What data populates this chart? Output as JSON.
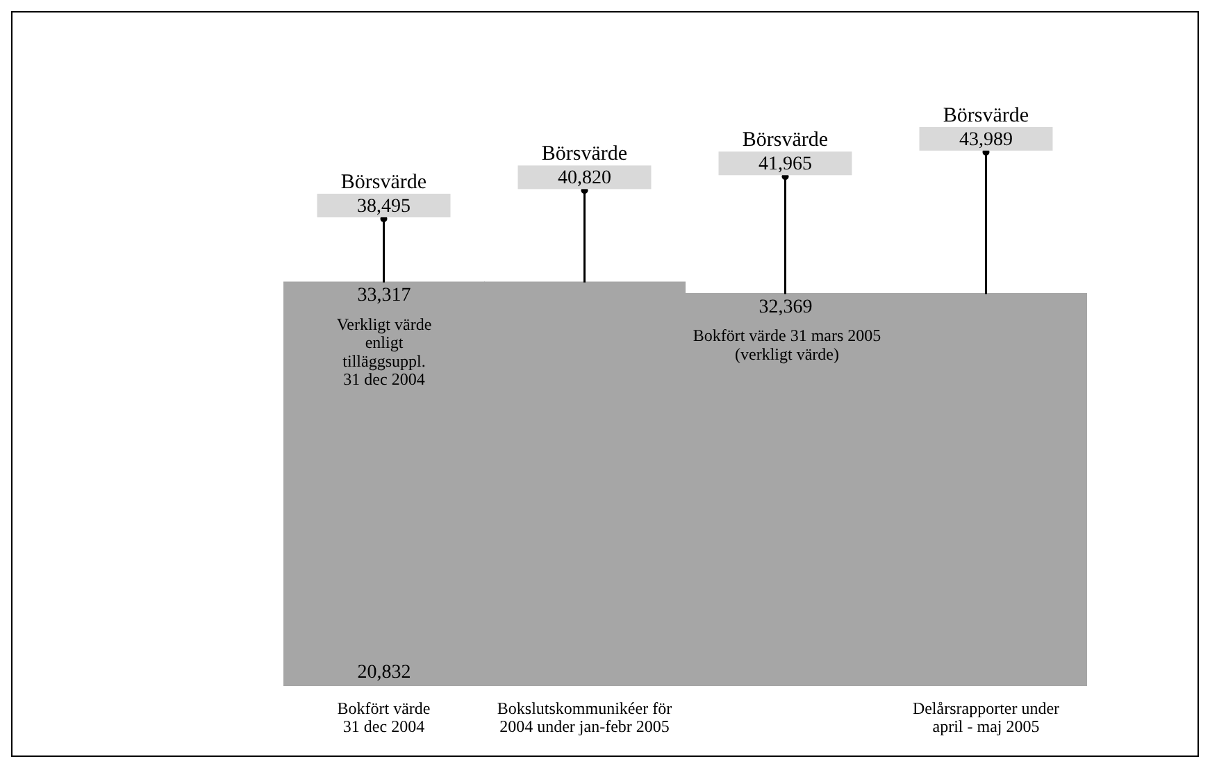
{
  "chart_data": {
    "type": "bar",
    "categories": [
      "Bokfört värde\n31 dec 2004",
      "Bokslutskommunikéer för\n2004 under jan-febr 2005",
      null,
      "Delårsrapporter under\napril - maj 2005"
    ],
    "series": [
      {
        "color": "#a6a6a6",
        "values": [
          33317,
          33317,
          32369,
          32369
        ],
        "value_labels": [
          "33,317",
          null,
          "32,369",
          null
        ]
      },
      {
        "type": "scatter",
        "name": "Börsvärde",
        "color": "#000000",
        "marker": "circle",
        "values": [
          38495,
          40820,
          41965,
          43989
        ],
        "value_labels": [
          "38,495",
          "40,820",
          "41,965",
          "43,989"
        ]
      }
    ],
    "tick_labels": "x",
    "annotations": [
      "20,832",
      {
        "text": "Verkligt värde\nenligt\ntilläggsuppl.\n31 dec 2004",
        "y": 33317
      },
      {
        "text": "Bokfört värde 31  mars 2005\n(verkligt värde)",
        "y": 32369
      }
    ]
  }
}
